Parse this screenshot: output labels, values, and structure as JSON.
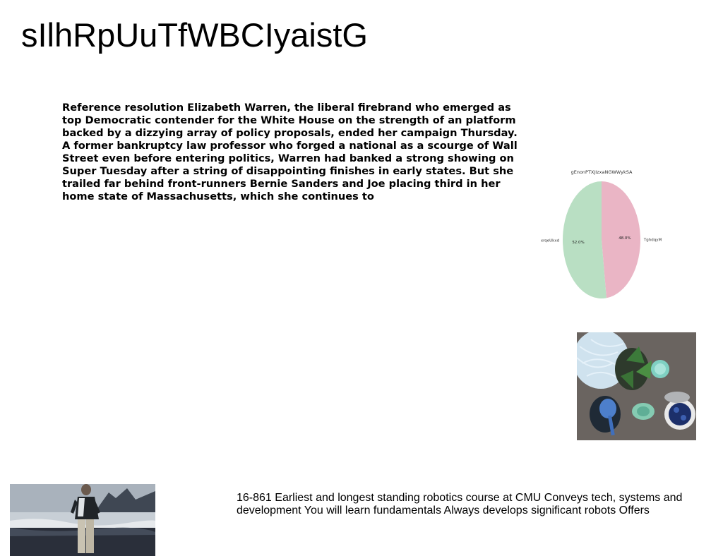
{
  "header": {
    "title": "sIlhRpUuTfWBCIyaistG"
  },
  "article": {
    "paragraph": "Reference resolution Elizabeth Warren, the liberal firebrand who emerged as top Democratic contender for the White House on the strength of an platform backed by a dizzying array of policy proposals, ended her campaign Thursday. A former bankruptcy law professor who forged a national as a scourge of Wall Street even before entering politics, Warren had banked a strong showing on Super Tuesday after a string of disappointing finishes in early states. But she trailed far behind front-runners Bernie Sanders and Joe placing third in her home state of Massachusetts, which she continues to"
  },
  "chart_data": {
    "type": "pie",
    "title": "gEnonPTXJIzxaNGWWykSA",
    "slices": [
      {
        "label": "TghdqyM",
        "value": 48.0,
        "pct_label": "48.0%",
        "color": "#eab5c5"
      },
      {
        "label": "xrqeUkxd",
        "value": 52.0,
        "pct_label": "52.0%",
        "color": "#b9dfc3"
      }
    ],
    "start_angle": "12 o'clock",
    "direction": "clockwise"
  },
  "footer": {
    "course_text": "16-861 Earliest and longest standing robotics course at CMU Conveys tech, systems and development You will learn fundamentals Always develops significant robots Offers"
  },
  "images": {
    "food": "food-photo",
    "beach": "beach-photo"
  }
}
